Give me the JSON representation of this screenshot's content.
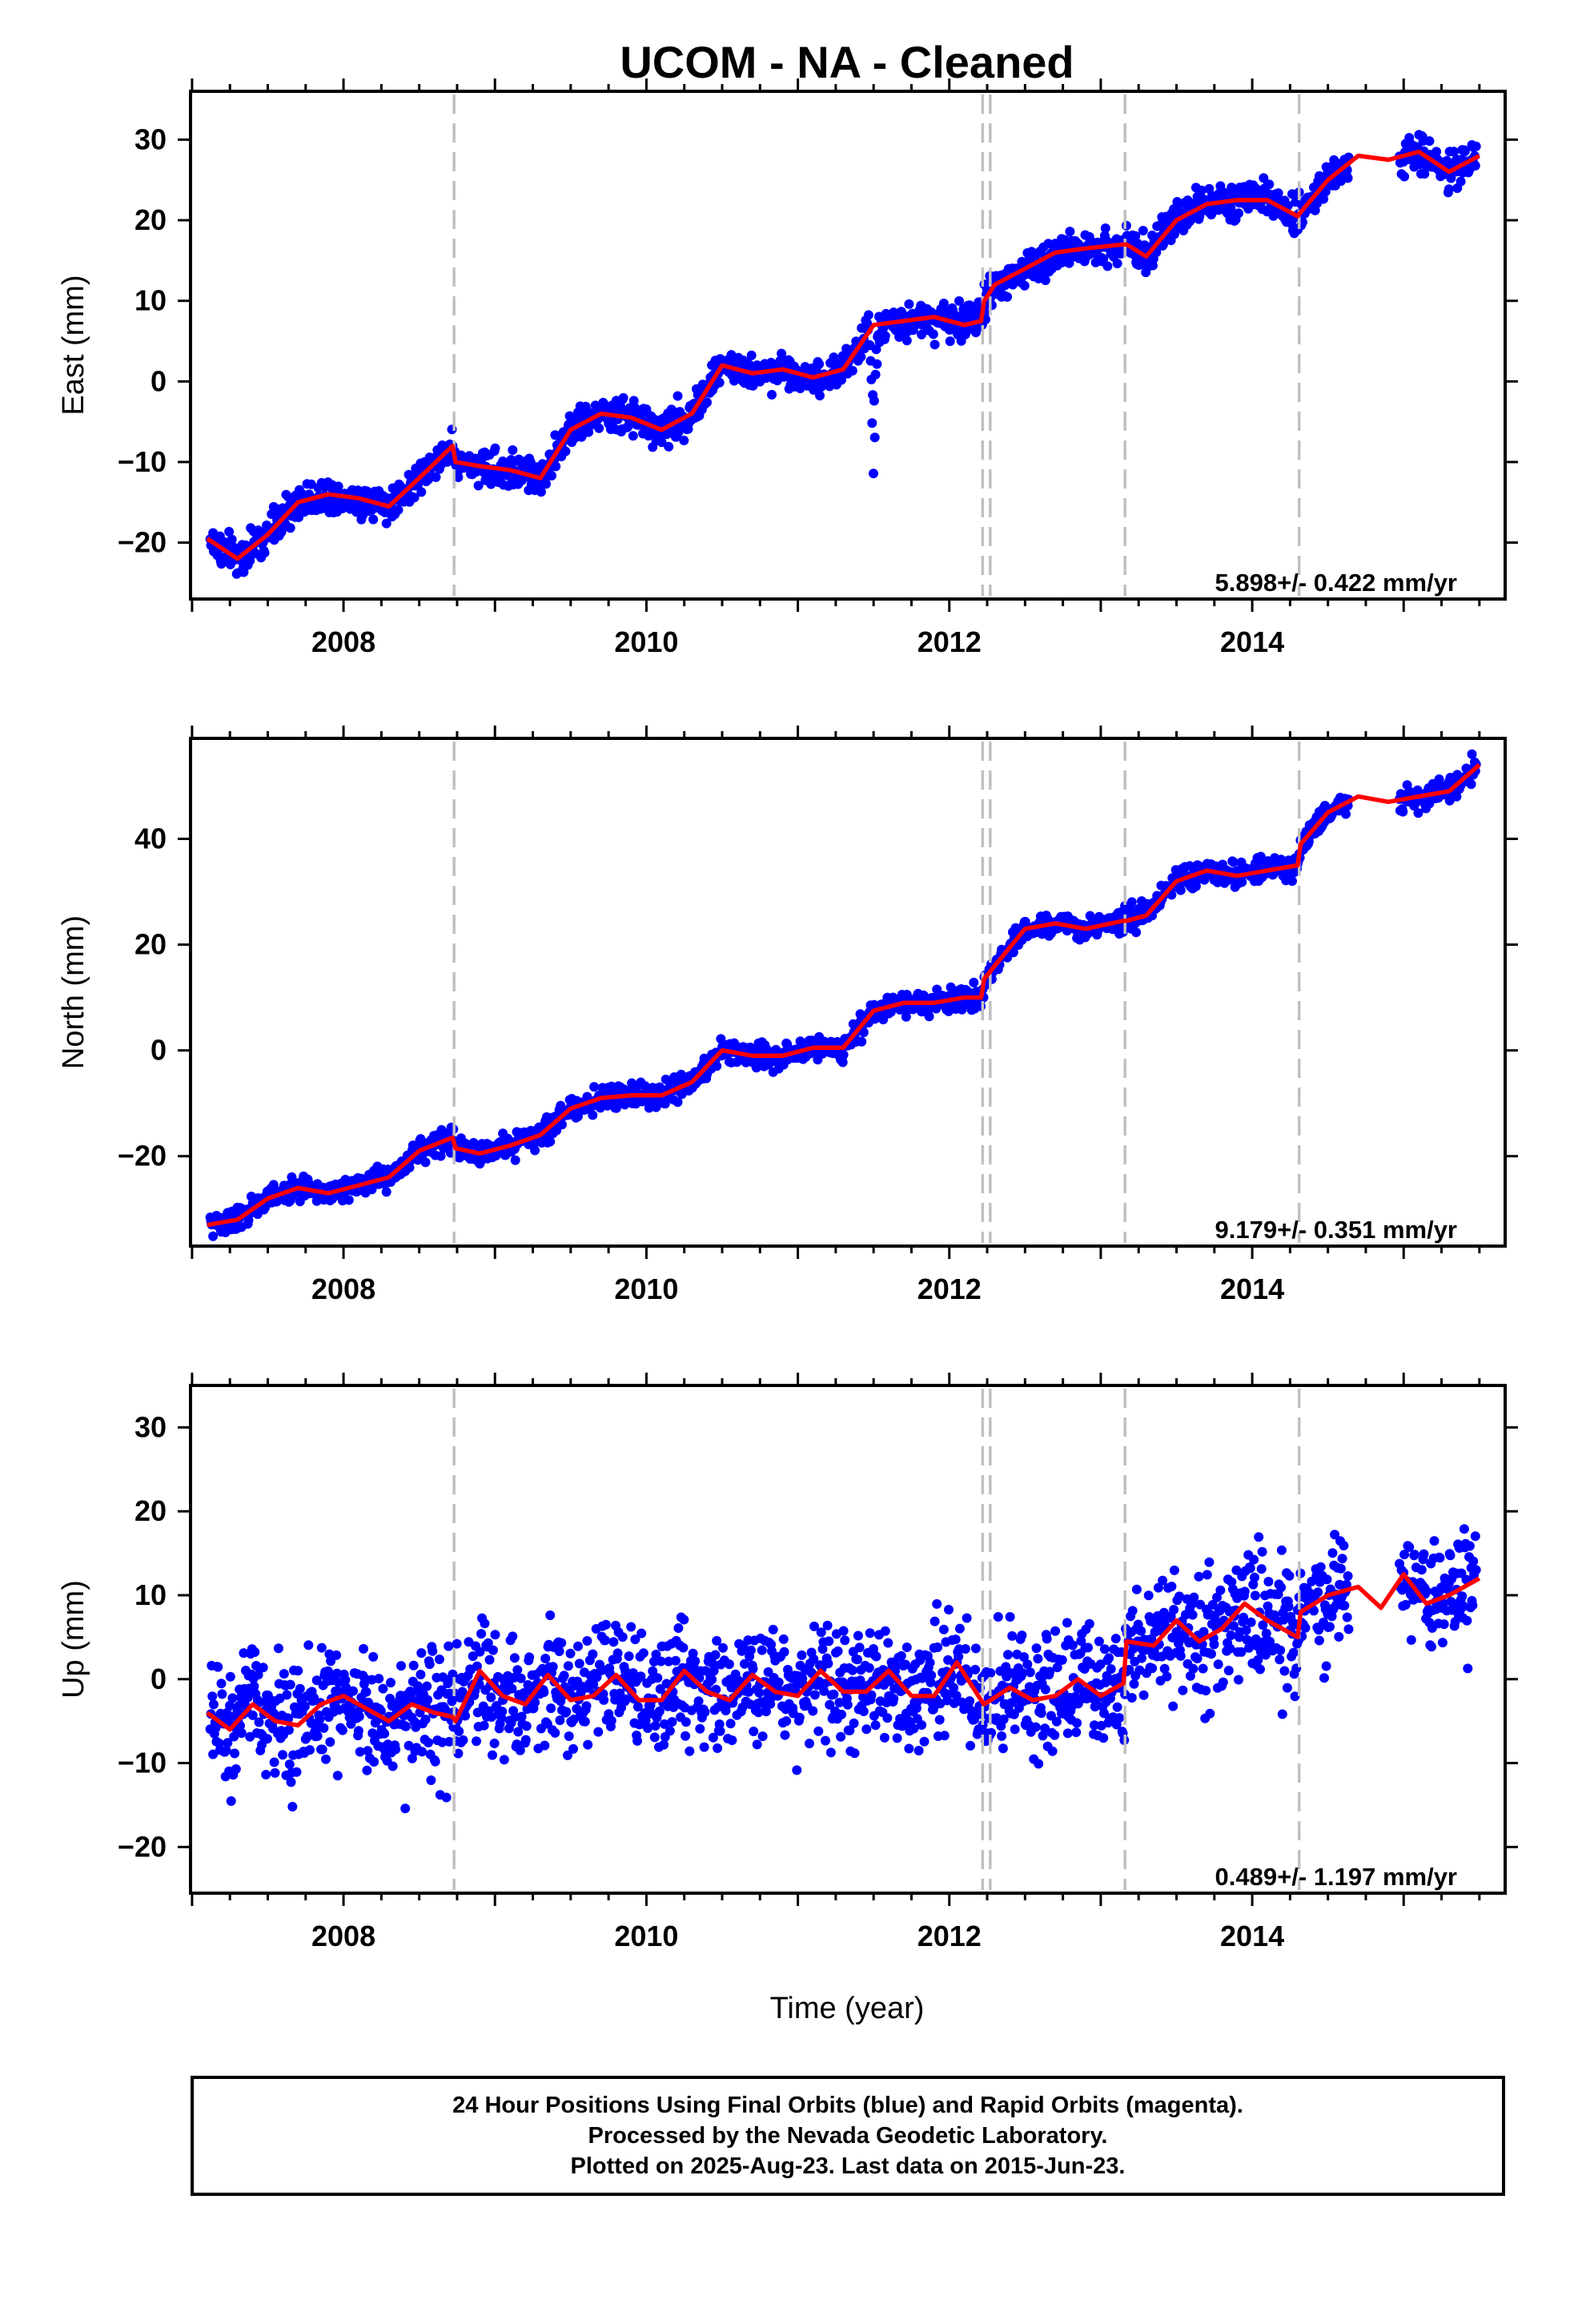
{
  "colors": {
    "final_orbits": "#0000ff",
    "model_fit": "#ff0000",
    "equipment_change": "#c0c0c0",
    "frame": "#000000"
  },
  "footer": {
    "line1": "24 Hour Positions Using Final Orbits (blue) and Rapid Orbits (magenta).",
    "line2": "Processed by the Nevada Geodetic Laboratory.",
    "line3": "Plotted on 2025-Aug-23. Last data on 2015-Jun-23."
  },
  "chart_data": {
    "type": "scatter",
    "title": "UCOM  - NA - Cleaned",
    "xlabel": "Time (year)",
    "x_ticks": [
      2008,
      2010,
      2012,
      2014
    ],
    "xlim": [
      2006.99,
      2015.67
    ],
    "grid": false,
    "step_epochs": [
      2008.73,
      2012.22,
      2012.27,
      2013.16,
      2014.31
    ],
    "panels": [
      {
        "ylabel": "East (mm)",
        "ylim": [
          -27,
          36
        ],
        "y_ticks": [
          -20,
          -10,
          0,
          10,
          20,
          30
        ],
        "rate_label": "5.898+/- 0.422 mm/yr",
        "noise": 1.5,
        "spike": {
          "x": 2011.5,
          "depth": -13
        },
        "fit": {
          "x": [
            2007.1,
            2007.3,
            2007.5,
            2007.7,
            2007.9,
            2008.1,
            2008.3,
            2008.5,
            2008.72,
            2008.74,
            2008.9,
            2009.1,
            2009.3,
            2009.5,
            2009.7,
            2009.9,
            2010.1,
            2010.3,
            2010.5,
            2010.7,
            2010.9,
            2011.1,
            2011.3,
            2011.5,
            2011.7,
            2011.9,
            2012.1,
            2012.21,
            2012.23,
            2012.3,
            2012.5,
            2012.7,
            2012.9,
            2013.15,
            2013.17,
            2013.3,
            2013.5,
            2013.7,
            2013.9,
            2014.1,
            2014.3,
            2014.32,
            2014.5,
            2014.7,
            2014.9,
            2015.1,
            2015.3,
            2015.5
          ],
          "y": [
            -19.5,
            -22,
            -19,
            -15,
            -14,
            -14.5,
            -15.5,
            -12,
            -8,
            -10,
            -10.5,
            -11,
            -12,
            -6,
            -4,
            -4.5,
            -6,
            -4,
            2,
            1,
            1.5,
            0.5,
            1.5,
            7,
            7.5,
            8,
            7,
            7.5,
            10,
            12,
            14,
            16,
            16.5,
            17,
            17,
            15.5,
            20,
            22,
            22.5,
            22.5,
            20.5,
            21,
            25,
            28,
            27.5,
            28.5,
            26,
            28
          ]
        }
      },
      {
        "ylabel": "North (mm)",
        "ylim": [
          -37,
          59
        ],
        "y_ticks": [
          -20,
          0,
          20,
          40
        ],
        "rate_label": "9.179+/- 0.351 mm/yr",
        "noise": 1.5,
        "fit": {
          "x": [
            2007.1,
            2007.3,
            2007.5,
            2007.7,
            2007.9,
            2008.1,
            2008.3,
            2008.5,
            2008.72,
            2008.74,
            2008.9,
            2009.1,
            2009.3,
            2009.5,
            2009.7,
            2009.9,
            2010.1,
            2010.3,
            2010.5,
            2010.7,
            2010.9,
            2011.1,
            2011.3,
            2011.5,
            2011.7,
            2011.9,
            2012.1,
            2012.21,
            2012.23,
            2012.3,
            2012.5,
            2012.7,
            2012.9,
            2013.15,
            2013.17,
            2013.3,
            2013.5,
            2013.7,
            2013.9,
            2014.1,
            2014.3,
            2014.32,
            2014.5,
            2014.7,
            2014.9,
            2015.1,
            2015.3,
            2015.5
          ],
          "y": [
            -33,
            -32,
            -28,
            -26,
            -27,
            -25.5,
            -24,
            -19,
            -16.5,
            -18.5,
            -19.5,
            -18,
            -16,
            -11,
            -9,
            -8.5,
            -8.5,
            -6,
            0,
            -1,
            -1,
            0.5,
            0.5,
            7.5,
            9,
            9,
            10,
            10,
            13.5,
            16,
            23,
            24,
            23,
            24.5,
            24.5,
            25.5,
            32,
            34,
            33,
            34,
            35,
            39,
            45,
            48,
            47,
            48,
            49,
            54
          ]
        }
      },
      {
        "ylabel": "Up (mm)",
        "ylim": [
          -25.5,
          35
        ],
        "y_ticks": [
          -20,
          -10,
          0,
          10,
          20,
          30
        ],
        "rate_label": "0.489+/- 1.197 mm/yr",
        "noise": 5,
        "fit": {
          "x": [
            2007.1,
            2007.25,
            2007.4,
            2007.55,
            2007.7,
            2007.85,
            2008.0,
            2008.15,
            2008.3,
            2008.45,
            2008.6,
            2008.72,
            2008.74,
            2008.9,
            2009.05,
            2009.2,
            2009.35,
            2009.5,
            2009.65,
            2009.8,
            2009.95,
            2010.1,
            2010.25,
            2010.4,
            2010.55,
            2010.7,
            2010.85,
            2011.0,
            2011.15,
            2011.3,
            2011.45,
            2011.6,
            2011.75,
            2011.9,
            2012.05,
            2012.21,
            2012.23,
            2012.4,
            2012.55,
            2012.7,
            2012.85,
            2013.0,
            2013.15,
            2013.17,
            2013.35,
            2013.5,
            2013.65,
            2013.8,
            2013.95,
            2014.1,
            2014.3,
            2014.32,
            2014.5,
            2014.7,
            2014.85,
            2015.0,
            2015.15,
            2015.3,
            2015.5
          ],
          "y": [
            -4,
            -6,
            -3,
            -5,
            -5.5,
            -3,
            -2,
            -3.5,
            -5,
            -3,
            -4,
            -4.5,
            -5,
            1,
            -2,
            -3,
            0.5,
            -2.5,
            -2,
            0.5,
            -2.5,
            -2.5,
            1,
            -1.5,
            -2.5,
            0.5,
            -1.5,
            -2,
            1,
            -1.5,
            -1.5,
            1,
            -2,
            -2,
            2,
            -2.5,
            -3,
            -1,
            -2.5,
            -2,
            0,
            -2,
            -0.5,
            4.5,
            4,
            7,
            4.5,
            6,
            9,
            7,
            5,
            8,
            10,
            11,
            8.5,
            12.5,
            9,
            10,
            12
          ]
        }
      }
    ]
  }
}
